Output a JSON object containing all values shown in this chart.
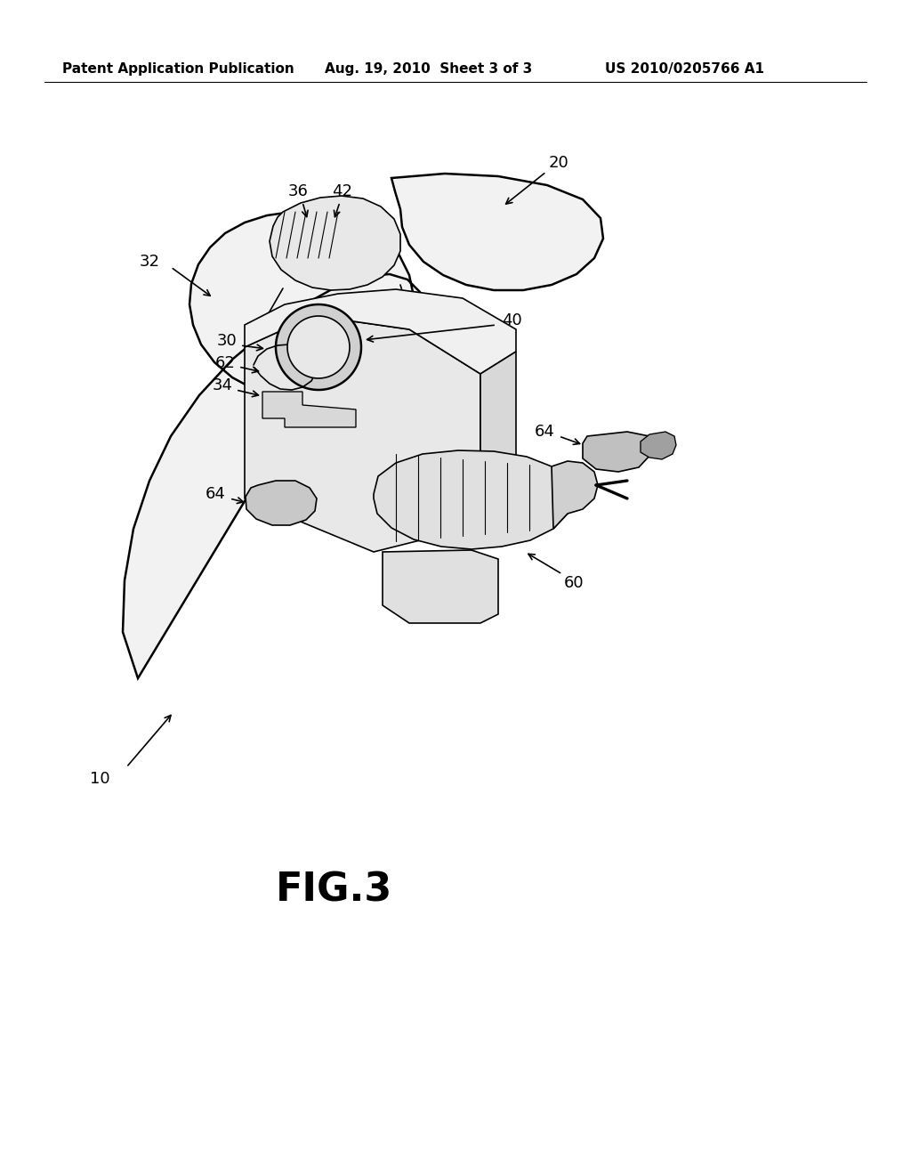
{
  "background_color": "#ffffff",
  "header_left": "Patent Application Publication",
  "header_center": "Aug. 19, 2010  Sheet 3 of 3",
  "header_right": "US 2010/0205766 A1",
  "figure_label": "FIG.3",
  "line_color": "#000000",
  "line_width": 1.2,
  "text_color": "#000000",
  "header_fontsize": 11,
  "label_fontsize": 13,
  "fig_label_fontsize": 32,
  "diagram": {
    "bag_color": "#f2f2f2",
    "bag_edge": "#000000",
    "motor_color": "#e0e0e0",
    "dark_gray": "#b0b0b0",
    "mid_gray": "#c8c8c8",
    "circle_color": "#d0d0d0"
  }
}
